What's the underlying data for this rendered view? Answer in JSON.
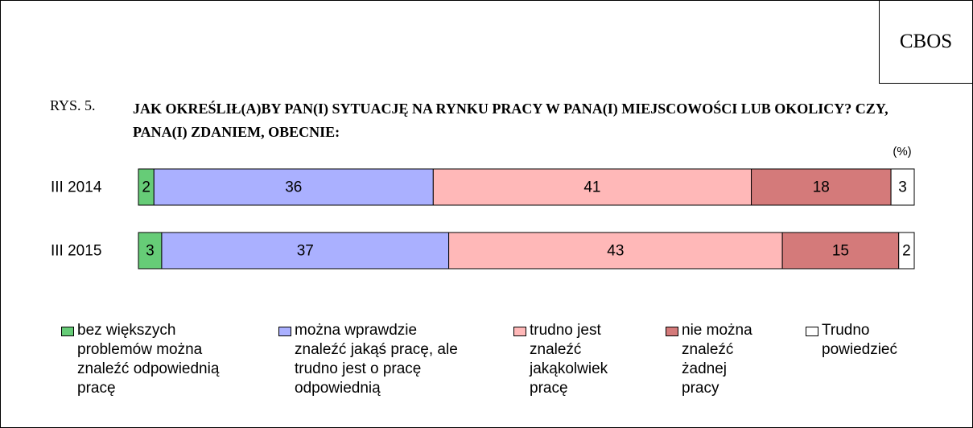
{
  "source": "CBOS",
  "chart_data": {
    "type": "stacked-bar-horizontal",
    "figure_label": "RYS. 5.",
    "title": "JAK OKREŚLIŁ(A)BY PAN(I) SYTUACJĘ NA RYNKU PRACY W PANA(I) MIEJSCOWOŚCI LUB OKOLICY? CZY, PANA(I) ZDANIEM, OBECNIE:",
    "unit_note": "(%)",
    "categories": [
      "III 2014",
      "III 2015"
    ],
    "xlim": [
      0,
      100
    ],
    "series": [
      {
        "name": "bez większych problemów można znaleźć odpowiednią pracę",
        "color": "#66cc77",
        "values": [
          2,
          3
        ]
      },
      {
        "name": "można wprawdzie znaleźć jakąś pracę, ale trudno jest o pracę odpowiednią",
        "color": "#aab0ff",
        "values": [
          36,
          37
        ]
      },
      {
        "name": "trudno jest znaleźć jakąkolwiek pracę",
        "color": "#ffb8b8",
        "values": [
          41,
          43
        ]
      },
      {
        "name": "nie można znaleźć żadnej pracy",
        "color": "#d47a7a",
        "values": [
          18,
          15
        ]
      },
      {
        "name": "Trudno powiedzieć",
        "color": "#ffffff",
        "values": [
          3,
          2
        ]
      }
    ]
  }
}
